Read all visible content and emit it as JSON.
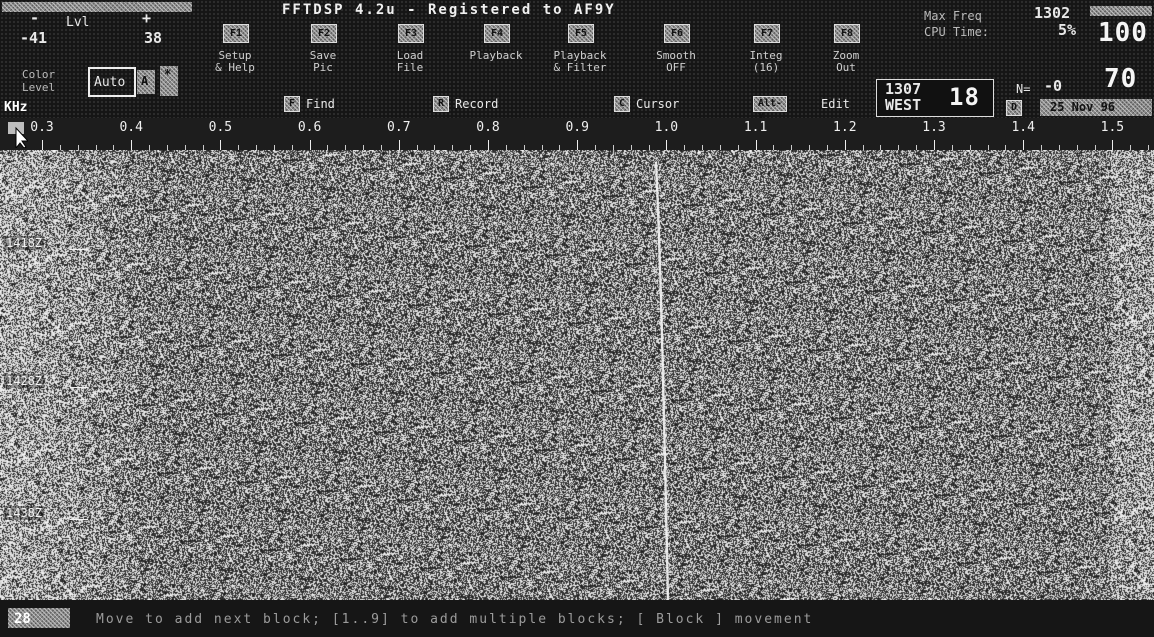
{
  "app": {
    "title": "FFTDSP 4.2u - Registered to AF9Y"
  },
  "level_control": {
    "minus_label": "-",
    "plus_label": "+",
    "lvl_label": "Lvl",
    "min_value": "-41",
    "max_value": "38",
    "color_level_label": "Color\nLevel",
    "auto_label": "Auto",
    "a_key": "A",
    "star_key": "*"
  },
  "function_keys": [
    {
      "key": "F1",
      "label": "Setup\n& Help"
    },
    {
      "key": "F2",
      "label": "Save\nPic"
    },
    {
      "key": "F3",
      "label": "Load\nFile"
    },
    {
      "key": "F4",
      "label": "Playback"
    },
    {
      "key": "F5",
      "label": "Playback\n& Filter"
    },
    {
      "key": "F6",
      "label": "Smooth\nOFF"
    },
    {
      "key": "F7",
      "label": "Integ\n(16)"
    },
    {
      "key": "F8",
      "label": "Zoom\nOut"
    }
  ],
  "hotkeys": {
    "find": {
      "key": "F",
      "label": "Find"
    },
    "record": {
      "key": "R",
      "label": "Record"
    },
    "cursor": {
      "key": "C",
      "label": "Cursor"
    },
    "edit": {
      "key": "Alt-X",
      "label": "Edit"
    }
  },
  "right_panel": {
    "max_freq_label": "Max Freq",
    "max_freq_value": "1302",
    "cpu_time_label": "CPU Time:",
    "cpu_time_value": "5%",
    "big_value_top": "100",
    "big_value_bottom": "70",
    "freq_readout": "1307",
    "direction": "WEST",
    "minute": "18",
    "n_label": "N=",
    "n_value": "-0",
    "date_key": "D",
    "date": "25 Nov 96"
  },
  "scale": {
    "unit": "KHz",
    "corner_icon": "mouse-pointer-icon",
    "ticks": [
      "0.3",
      "0.4",
      "0.5",
      "0.6",
      "0.7",
      "0.8",
      "0.9",
      "1.0",
      "1.1",
      "1.2",
      "1.3",
      "1.4",
      "1.5"
    ]
  },
  "waterfall": {
    "time_labels": [
      "1418Z",
      "1428Z",
      "1438Z"
    ],
    "signal_khz": 1.0
  },
  "status": {
    "count": "28",
    "message": "Move to add next block; [1..9] to add multiple blocks; [ Block ] movement"
  }
}
